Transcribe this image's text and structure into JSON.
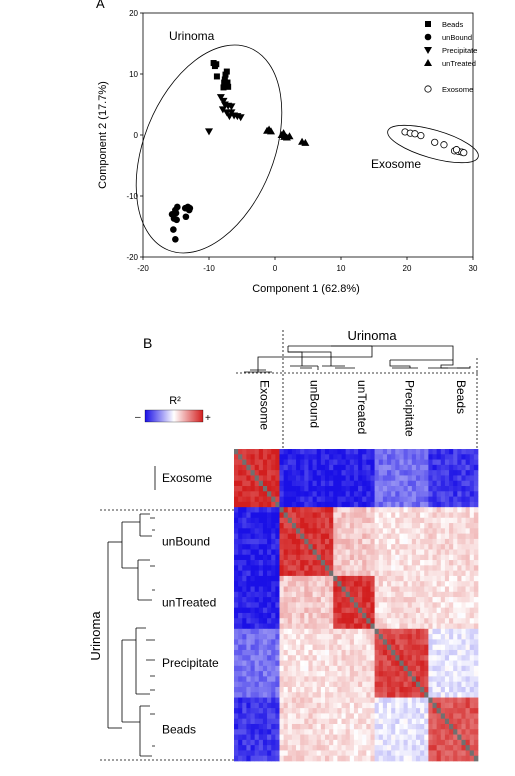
{
  "chart_data": [
    {
      "type": "scatter",
      "panel_label": "A",
      "xlabel": "Component 1  (62.8%)",
      "ylabel": "Component 2  (17.7%)",
      "xlim": [
        -20,
        30
      ],
      "ylim": [
        -20,
        20
      ],
      "x_ticks": [
        "-20",
        "-10",
        "0",
        "10",
        "20",
        "30"
      ],
      "y_ticks": [
        "20",
        "10",
        "0",
        "-10",
        "-20"
      ],
      "legend_placement": "top-right",
      "annotations": [
        "Urinoma",
        "Exosome"
      ],
      "series": [
        {
          "name": "Beads",
          "marker": "square",
          "points": [
            [
              -9.3,
              11.8
            ],
            [
              -9.1,
              11.3
            ],
            [
              -8.8,
              9.6
            ],
            [
              -7.3,
              10.4
            ],
            [
              -7.5,
              9.9
            ],
            [
              -7.6,
              9.1
            ],
            [
              -7.2,
              8.6
            ],
            [
              -7.5,
              8.2
            ],
            [
              -7.8,
              7.8
            ],
            [
              -7.1,
              7.9
            ],
            [
              -8.9,
              11.6
            ],
            [
              -7.7,
              8.6
            ]
          ]
        },
        {
          "name": "unBound",
          "marker": "circle",
          "points": [
            [
              -15.1,
              -12.3
            ],
            [
              -15.0,
              -12.8
            ],
            [
              -15.6,
              -13.0
            ],
            [
              -15.3,
              -13.7
            ],
            [
              -14.9,
              -13.9
            ],
            [
              -14.8,
              -11.8
            ],
            [
              -13.6,
              -12.0
            ],
            [
              -13.2,
              -11.8
            ],
            [
              -12.9,
              -12.0
            ],
            [
              -13.0,
              -12.3
            ],
            [
              -13.5,
              -13.4
            ],
            [
              -15.4,
              -15.5
            ],
            [
              -15.1,
              -17.1
            ]
          ]
        },
        {
          "name": "Precipitate",
          "marker": "triangle-down",
          "points": [
            [
              -10.0,
              0.6
            ],
            [
              -8.2,
              6.2
            ],
            [
              -7.8,
              5.6
            ],
            [
              -7.6,
              5.0
            ],
            [
              -7.1,
              4.8
            ],
            [
              -6.6,
              4.7
            ],
            [
              -6.6,
              3.7
            ],
            [
              -7.3,
              3.7
            ],
            [
              -6.9,
              3.1
            ],
            [
              -6.2,
              3.2
            ],
            [
              -5.7,
              3.1
            ],
            [
              -5.2,
              2.9
            ],
            [
              -7.9,
              4.2
            ]
          ]
        },
        {
          "name": "unTreated",
          "marker": "triangle-up",
          "points": [
            [
              -1.2,
              0.7
            ],
            [
              -0.9,
              0.9
            ],
            [
              -0.6,
              0.6
            ],
            [
              1.0,
              0.0
            ],
            [
              1.4,
              -0.3
            ],
            [
              1.8,
              -0.4
            ],
            [
              1.3,
              0.3
            ],
            [
              4.1,
              -1.1
            ],
            [
              4.6,
              -1.3
            ],
            [
              2.2,
              -0.2
            ]
          ]
        },
        {
          "name": "Exosome",
          "marker": "open-circle",
          "points": [
            [
              19.7,
              0.5
            ],
            [
              20.5,
              0.3
            ],
            [
              21.2,
              0.2
            ],
            [
              22.1,
              -0.1
            ],
            [
              24.2,
              -1.2
            ],
            [
              25.6,
              -1.6
            ],
            [
              27.2,
              -2.6
            ],
            [
              27.8,
              -2.7
            ],
            [
              28.3,
              -2.8
            ],
            [
              28.6,
              -2.9
            ],
            [
              27.5,
              -2.4
            ]
          ]
        }
      ]
    },
    {
      "type": "heatmap",
      "panel_label": "B",
      "colorbar_title": "R²",
      "colorbar_minus": "–",
      "colorbar_plus": "+",
      "cluster_label": "Urinoma",
      "column_groups": [
        {
          "name": "Exosome",
          "count": 11
        },
        {
          "name": "unBound",
          "count": 13
        },
        {
          "name": "unTreated",
          "count": 10
        },
        {
          "name": "Precipitate",
          "count": 13
        },
        {
          "name": "Beads",
          "count": 12
        }
      ],
      "row_groups": [
        {
          "name": "Exosome",
          "count": 11
        },
        {
          "name": "unBound",
          "count": 13
        },
        {
          "name": "unTreated",
          "count": 10
        },
        {
          "name": "Precipitate",
          "count": 13
        },
        {
          "name": "Beads",
          "count": 12
        }
      ]
    }
  ],
  "colors": {
    "low": "#1a10e6",
    "mid": "#ffffff",
    "high": "#d21e1e",
    "diagonal": "#707070"
  }
}
